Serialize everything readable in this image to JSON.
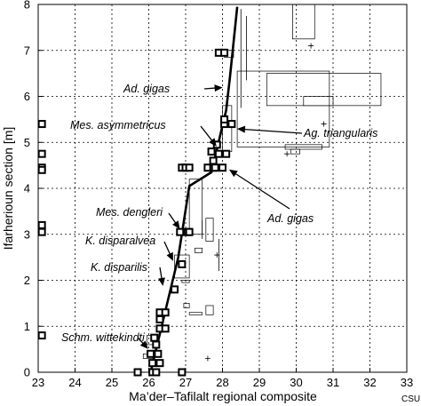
{
  "chart_data": {
    "type": "scatter",
    "xlabel": "Ma’der–Tafilalt regional composite",
    "ylabel": "Ifarherioun section [m]",
    "xlim": [
      23,
      33
    ],
    "ylim": [
      0,
      8
    ],
    "x_ticks": [
      "23",
      "24",
      "25",
      "26",
      "27",
      "28",
      "29",
      "30",
      "31",
      "32",
      "33"
    ],
    "y_ticks": [
      "0",
      "1",
      "2",
      "3",
      "4",
      "5",
      "6",
      "7",
      "8"
    ],
    "grid": true,
    "corner_mark": "CSU",
    "line_of_correlation": [
      {
        "x": 26.05,
        "y": 0.0
      },
      {
        "x": 26.35,
        "y": 1.0
      },
      {
        "x": 26.8,
        "y": 2.5
      },
      {
        "x": 27.1,
        "y": 4.05
      },
      {
        "x": 27.7,
        "y": 4.35
      },
      {
        "x": 28.1,
        "y": 5.7
      },
      {
        "x": 28.2,
        "y": 6.4
      },
      {
        "x": 28.4,
        "y": 7.95
      }
    ],
    "points": [
      {
        "x": 23.1,
        "y": 5.4
      },
      {
        "x": 23.1,
        "y": 4.75
      },
      {
        "x": 23.1,
        "y": 4.45
      },
      {
        "x": 23.1,
        "y": 4.4
      },
      {
        "x": 23.1,
        "y": 3.2
      },
      {
        "x": 23.1,
        "y": 3.05
      },
      {
        "x": 23.1,
        "y": 0.8
      },
      {
        "x": 26.1,
        "y": 0.0
      },
      {
        "x": 25.7,
        "y": 0.0
      },
      {
        "x": 26.2,
        "y": 0.0
      },
      {
        "x": 26.9,
        "y": 0.0
      },
      {
        "x": 26.1,
        "y": 0.2
      },
      {
        "x": 26.3,
        "y": 0.2
      },
      {
        "x": 26.05,
        "y": 0.4
      },
      {
        "x": 26.25,
        "y": 0.4
      },
      {
        "x": 26.2,
        "y": 0.6
      },
      {
        "x": 26.15,
        "y": 0.75
      },
      {
        "x": 26.3,
        "y": 0.95
      },
      {
        "x": 26.45,
        "y": 0.95
      },
      {
        "x": 26.3,
        "y": 1.15
      },
      {
        "x": 26.3,
        "y": 1.3
      },
      {
        "x": 26.45,
        "y": 1.3
      },
      {
        "x": 26.7,
        "y": 1.8
      },
      {
        "x": 26.9,
        "y": 2.35
      },
      {
        "x": 26.85,
        "y": 3.05
      },
      {
        "x": 27.05,
        "y": 3.05
      },
      {
        "x": 27.1,
        "y": 3.05
      },
      {
        "x": 26.9,
        "y": 4.45
      },
      {
        "x": 27.0,
        "y": 4.45
      },
      {
        "x": 27.1,
        "y": 4.45
      },
      {
        "x": 27.6,
        "y": 4.45
      },
      {
        "x": 27.75,
        "y": 4.45
      },
      {
        "x": 27.8,
        "y": 4.45
      },
      {
        "x": 28.0,
        "y": 4.45
      },
      {
        "x": 27.75,
        "y": 4.6
      },
      {
        "x": 27.9,
        "y": 4.75
      },
      {
        "x": 28.1,
        "y": 4.75
      },
      {
        "x": 27.7,
        "y": 4.8
      },
      {
        "x": 27.85,
        "y": 4.95
      },
      {
        "x": 28.05,
        "y": 5.4
      },
      {
        "x": 28.25,
        "y": 5.4
      },
      {
        "x": 28.05,
        "y": 5.5
      },
      {
        "x": 27.9,
        "y": 6.95
      },
      {
        "x": 28.05,
        "y": 6.95
      }
    ],
    "annotations": [
      {
        "text": "Ad. gigas",
        "x": 28.1,
        "y": 6.2
      },
      {
        "text": "Mes. asymmetricus",
        "x": 27.9,
        "y": 4.85
      },
      {
        "text": "Ag. triangularis",
        "x": 28.3,
        "y": 5.3
      },
      {
        "text": "Ad. gigas",
        "x": 28.1,
        "y": 4.45
      },
      {
        "text": "Mes. dengleri",
        "x": 26.9,
        "y": 3.05
      },
      {
        "text": "K. disparalvea",
        "x": 26.7,
        "y": 2.35
      },
      {
        "text": "K. disparilis",
        "x": 26.4,
        "y": 1.8
      },
      {
        "text": "Schm. wittekindti",
        "x": 26.05,
        "y": 0.45
      }
    ]
  }
}
